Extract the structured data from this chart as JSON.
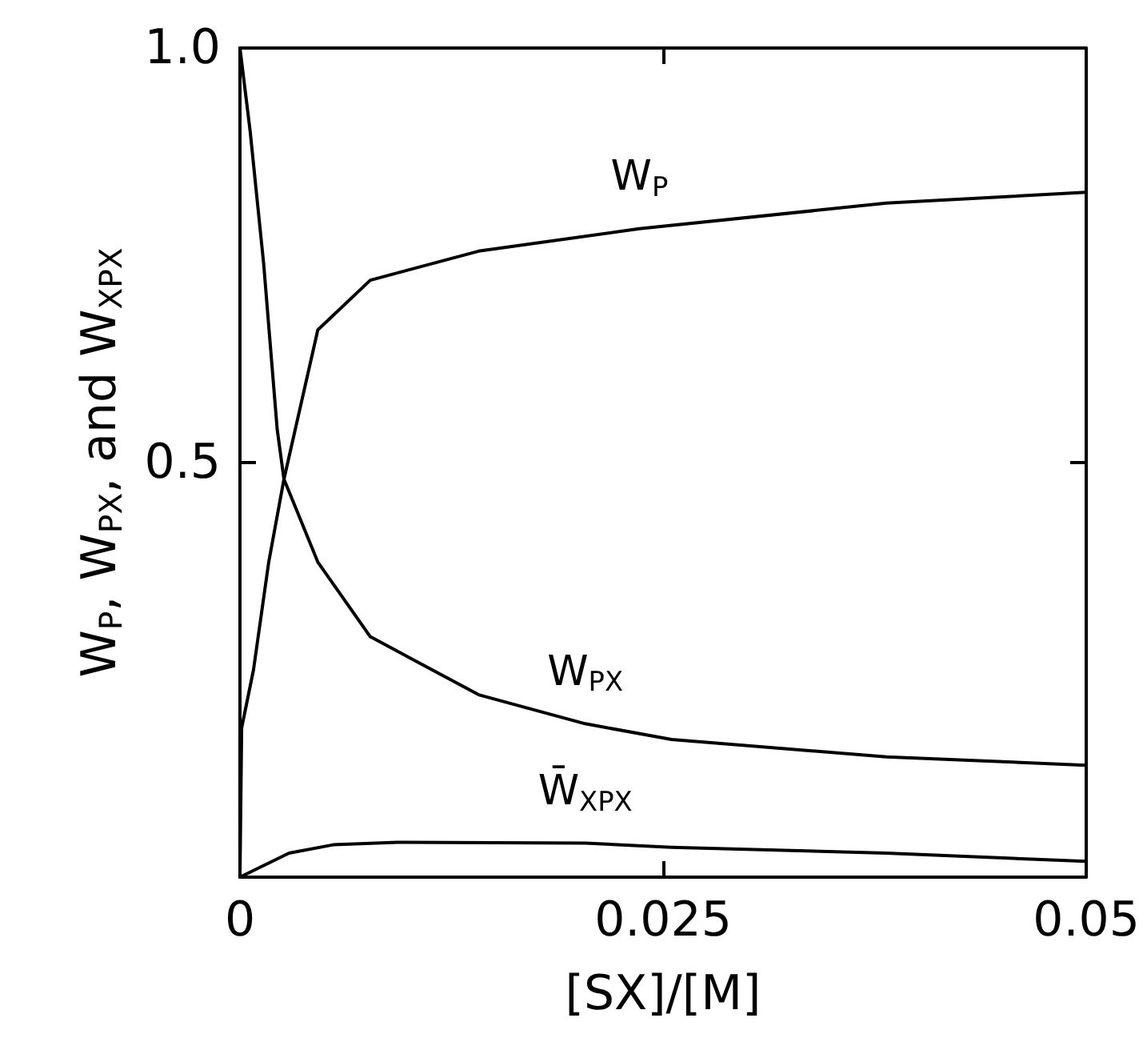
{
  "chart_data": {
    "type": "line",
    "xlabel": "[SX]/[M]",
    "ylabel": "W$_{P}$, W$_{PX}$, and W$_{XPX}$",
    "xlim": [
      0,
      0.05
    ],
    "ylim": [
      0,
      1.0
    ],
    "xticks": [
      0,
      0.025,
      0.05
    ],
    "yticks": [
      {
        "value": 0,
        "label": null
      },
      0.5,
      {
        "value": 1.0,
        "label": "1.0"
      }
    ],
    "grid": false,
    "legend": false,
    "marker": "none",
    "line_style": "solid",
    "series": [
      {
        "name": "W$_{P}$",
        "color": "#000000",
        "x": [
          0,
          0.0001,
          0.0008,
          0.0017,
          0.0026,
          0.0046,
          0.0077,
          0.0141,
          0.0236,
          0.0382,
          0.05
        ],
        "values": [
          0,
          0.18,
          0.25,
          0.38,
          0.48,
          0.66,
          0.72,
          0.755,
          0.782,
          0.813,
          0.826
        ]
      },
      {
        "name": "W$_{PX}$",
        "color": "#000000",
        "x": [
          0,
          0.0006,
          0.0014,
          0.0022,
          0.0026,
          0.0046,
          0.0077,
          0.0141,
          0.0204,
          0.0255,
          0.0382,
          0.05
        ],
        "values": [
          1.0,
          0.9,
          0.74,
          0.54,
          0.48,
          0.38,
          0.29,
          0.22,
          0.185,
          0.166,
          0.145,
          0.135
        ]
      },
      {
        "name": "W̄$_{XPX}$",
        "color": "#000000",
        "x": [
          0,
          0.0029,
          0.0055,
          0.0093,
          0.0204,
          0.0255,
          0.0382,
          0.05
        ],
        "values": [
          0,
          0.029,
          0.039,
          0.042,
          0.041,
          0.036,
          0.029,
          0.019
        ]
      }
    ]
  }
}
